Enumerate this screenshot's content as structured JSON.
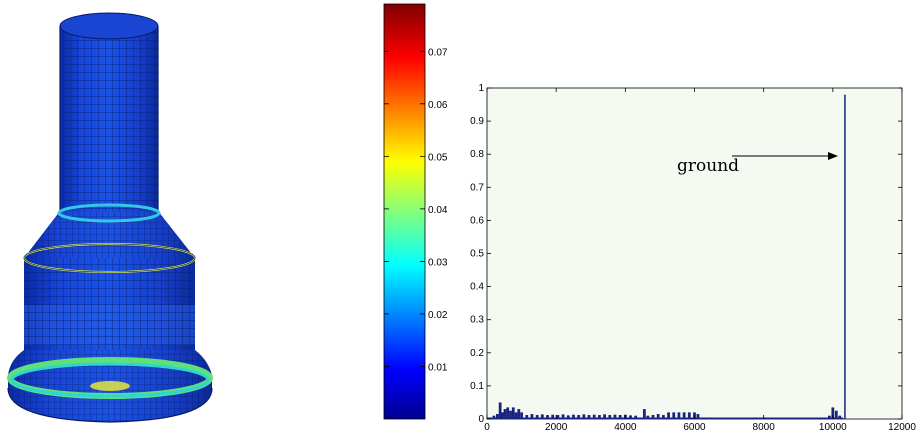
{
  "chart_data": [
    {
      "type": "colorbar",
      "ticks": [
        "0.01",
        "0.02",
        "0.03",
        "0.04",
        "0.05",
        "0.06",
        "0.07"
      ],
      "tick_values": [
        0.01,
        0.02,
        0.03,
        0.04,
        0.05,
        0.06,
        0.07
      ],
      "ylim": [
        0.0,
        0.079
      ],
      "colormap": "jet"
    },
    {
      "type": "bar",
      "xlim": [
        0,
        12000
      ],
      "ylim": [
        0,
        1
      ],
      "x_ticks": [
        "0",
        "2000",
        "4000",
        "6000",
        "8000",
        "10000",
        "12000"
      ],
      "y_ticks": [
        "0",
        "0.1",
        "0.2",
        "0.3",
        "0.4",
        "0.5",
        "0.6",
        "0.7",
        "0.8",
        "0.9",
        "1"
      ],
      "bar_color": "#1a237e",
      "plot_background": "#f4f9f2",
      "bins": [
        {
          "x": 200,
          "y": 0.01
        },
        {
          "x": 300,
          "y": 0.015
        },
        {
          "x": 380,
          "y": 0.05
        },
        {
          "x": 450,
          "y": 0.02
        },
        {
          "x": 520,
          "y": 0.03
        },
        {
          "x": 600,
          "y": 0.035
        },
        {
          "x": 680,
          "y": 0.025
        },
        {
          "x": 760,
          "y": 0.035
        },
        {
          "x": 840,
          "y": 0.02
        },
        {
          "x": 920,
          "y": 0.03
        },
        {
          "x": 1000,
          "y": 0.02
        },
        {
          "x": 1150,
          "y": 0.012
        },
        {
          "x": 1300,
          "y": 0.015
        },
        {
          "x": 1450,
          "y": 0.012
        },
        {
          "x": 1600,
          "y": 0.014
        },
        {
          "x": 1750,
          "y": 0.012
        },
        {
          "x": 1900,
          "y": 0.013
        },
        {
          "x": 2050,
          "y": 0.012
        },
        {
          "x": 2200,
          "y": 0.014
        },
        {
          "x": 2350,
          "y": 0.011
        },
        {
          "x": 2500,
          "y": 0.013
        },
        {
          "x": 2650,
          "y": 0.012
        },
        {
          "x": 2800,
          "y": 0.014
        },
        {
          "x": 2950,
          "y": 0.012
        },
        {
          "x": 3100,
          "y": 0.013
        },
        {
          "x": 3250,
          "y": 0.012
        },
        {
          "x": 3400,
          "y": 0.014
        },
        {
          "x": 3550,
          "y": 0.012
        },
        {
          "x": 3700,
          "y": 0.013
        },
        {
          "x": 3850,
          "y": 0.012
        },
        {
          "x": 4000,
          "y": 0.013
        },
        {
          "x": 4150,
          "y": 0.011
        },
        {
          "x": 4300,
          "y": 0.01
        },
        {
          "x": 4550,
          "y": 0.03
        },
        {
          "x": 4650,
          "y": 0.01
        },
        {
          "x": 4800,
          "y": 0.012
        },
        {
          "x": 4950,
          "y": 0.015
        },
        {
          "x": 5100,
          "y": 0.012
        },
        {
          "x": 5250,
          "y": 0.02
        },
        {
          "x": 5400,
          "y": 0.02
        },
        {
          "x": 5550,
          "y": 0.02
        },
        {
          "x": 5700,
          "y": 0.02
        },
        {
          "x": 5850,
          "y": 0.02
        },
        {
          "x": 6000,
          "y": 0.02
        },
        {
          "x": 6100,
          "y": 0.015
        },
        {
          "x": 9900,
          "y": 0.01
        },
        {
          "x": 10000,
          "y": 0.035
        },
        {
          "x": 10100,
          "y": 0.025
        },
        {
          "x": 10200,
          "y": 0.01
        }
      ],
      "ground_line_x": 10350,
      "annotations": [
        {
          "text": "ground"
        }
      ]
    }
  ]
}
